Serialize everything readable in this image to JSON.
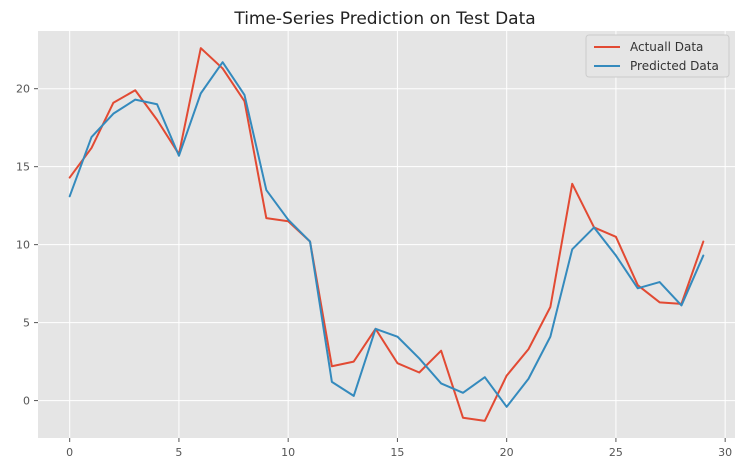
{
  "chart_data": {
    "type": "line",
    "title": "Time-Series Prediction on Test Data",
    "xlabel": "",
    "ylabel": "",
    "xlim": [
      -1.45,
      30.45
    ],
    "ylim": [
      -2.4,
      23.7
    ],
    "xticks": [
      0,
      5,
      10,
      15,
      20,
      25,
      30
    ],
    "yticks": [
      0,
      5,
      10,
      15,
      20
    ],
    "grid": true,
    "legend_position": "upper right",
    "x": [
      0,
      1,
      2,
      3,
      4,
      5,
      6,
      7,
      8,
      9,
      10,
      11,
      12,
      13,
      14,
      15,
      16,
      17,
      18,
      19,
      20,
      21,
      22,
      23,
      24,
      25,
      26,
      27,
      28,
      29
    ],
    "series": [
      {
        "name": "Actuall Data",
        "color": "#E24A33",
        "values": [
          14.3,
          16.2,
          19.1,
          19.9,
          18.0,
          15.8,
          22.6,
          21.3,
          19.2,
          11.7,
          11.5,
          10.2,
          2.2,
          2.5,
          4.6,
          2.4,
          1.8,
          3.2,
          -1.1,
          -1.3,
          1.6,
          3.3,
          6.0,
          13.9,
          11.1,
          10.5,
          7.4,
          6.3,
          6.2,
          10.2
        ]
      },
      {
        "name": "Predicted Data",
        "color": "#348ABD",
        "values": [
          13.1,
          16.9,
          18.4,
          19.3,
          19.0,
          15.7,
          19.7,
          21.7,
          19.6,
          13.5,
          11.6,
          10.2,
          1.2,
          0.3,
          4.6,
          4.1,
          2.7,
          1.1,
          0.5,
          1.5,
          -0.4,
          1.4,
          4.1,
          9.7,
          11.1,
          9.3,
          7.2,
          7.6,
          6.1,
          9.3
        ]
      }
    ]
  }
}
